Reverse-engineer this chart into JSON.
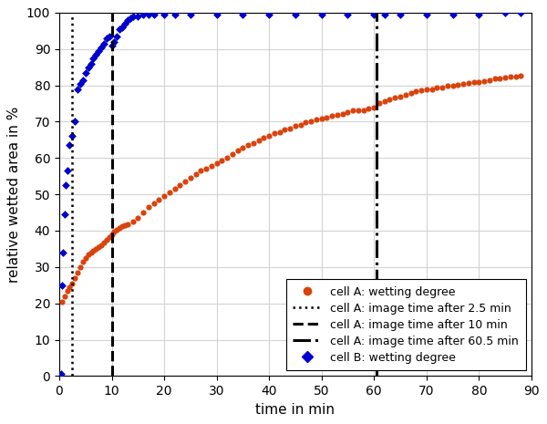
{
  "title": "",
  "xlabel": "time in min",
  "ylabel": "relative wetted area in %",
  "xlim": [
    0,
    90
  ],
  "ylim": [
    0,
    100
  ],
  "xticks": [
    0,
    10,
    20,
    30,
    40,
    50,
    60,
    70,
    80,
    90
  ],
  "yticks": [
    0,
    10,
    20,
    30,
    40,
    50,
    60,
    70,
    80,
    90,
    100
  ],
  "vline_dotted_x": 2.5,
  "vline_dashed_x": 10.0,
  "vline_dashdot_x": 60.5,
  "color_A": "#d9430d",
  "color_B": "#0000cd",
  "legend_labels": [
    "cell A: wetting degree",
    "cell A: image time after 2.5 min",
    "cell A: image time after 10 min",
    "cell A: image time after 60.5 min",
    "cell B: wetting degree"
  ],
  "cell_A_time": [
    0.5,
    1.0,
    1.5,
    2.0,
    2.5,
    3.0,
    3.5,
    4.0,
    4.5,
    5.0,
    5.5,
    6.0,
    6.5,
    7.0,
    7.5,
    8.0,
    8.5,
    9.0,
    9.5,
    10.0,
    10.5,
    11.0,
    11.5,
    12.0,
    12.5,
    13.0,
    14.0,
    15.0,
    16.0,
    17.0,
    18.0,
    19.0,
    20.0,
    21.0,
    22.0,
    23.0,
    24.0,
    25.0,
    26.0,
    27.0,
    28.0,
    29.0,
    30.0,
    31.0,
    32.0,
    33.0,
    34.0,
    35.0,
    36.0,
    37.0,
    38.0,
    39.0,
    40.0,
    41.0,
    42.0,
    43.0,
    44.0,
    45.0,
    46.0,
    47.0,
    48.0,
    49.0,
    50.0,
    51.0,
    52.0,
    53.0,
    54.0,
    55.0,
    56.0,
    57.0,
    58.0,
    59.0,
    60.0,
    61.0,
    62.0,
    63.0,
    64.0,
    65.0,
    66.0,
    67.0,
    68.0,
    69.0,
    70.0,
    71.0,
    72.0,
    73.0,
    74.0,
    75.0,
    76.0,
    77.0,
    78.0,
    79.0,
    80.0,
    81.0,
    82.0,
    83.0,
    84.0,
    85.0,
    86.0,
    87.0,
    88.0
  ],
  "cell_A_values": [
    20.5,
    22.0,
    23.5,
    24.5,
    25.5,
    27.0,
    28.5,
    30.0,
    31.5,
    32.5,
    33.5,
    34.0,
    34.5,
    35.0,
    35.5,
    36.0,
    36.8,
    37.5,
    38.2,
    39.0,
    39.8,
    40.2,
    40.8,
    41.2,
    41.5,
    41.8,
    42.5,
    43.5,
    45.0,
    46.5,
    47.5,
    48.5,
    49.5,
    50.5,
    51.5,
    52.5,
    53.5,
    54.5,
    55.5,
    56.5,
    57.0,
    57.8,
    58.5,
    59.2,
    60.0,
    61.0,
    62.0,
    62.8,
    63.5,
    64.0,
    64.8,
    65.5,
    66.0,
    66.8,
    67.2,
    67.8,
    68.2,
    68.8,
    69.2,
    69.8,
    70.2,
    70.5,
    70.8,
    71.2,
    71.5,
    71.8,
    72.0,
    72.5,
    73.0,
    73.0,
    73.2,
    73.5,
    73.8,
    75.0,
    75.5,
    76.0,
    76.5,
    77.0,
    77.5,
    78.0,
    78.3,
    78.6,
    78.8,
    79.0,
    79.3,
    79.5,
    79.8,
    80.0,
    80.2,
    80.4,
    80.6,
    80.8,
    81.0,
    81.2,
    81.5,
    81.8,
    82.0,
    82.2,
    82.3,
    82.5,
    82.7
  ],
  "cell_B_time": [
    0.1,
    0.3,
    0.5,
    0.7,
    1.0,
    1.3,
    1.6,
    2.0,
    2.5,
    3.0,
    3.5,
    4.0,
    4.5,
    5.0,
    5.5,
    6.0,
    6.5,
    7.0,
    7.5,
    8.0,
    8.5,
    9.0,
    9.5,
    10.0,
    10.5,
    11.0,
    11.5,
    12.0,
    12.5,
    13.0,
    13.5,
    14.0,
    15.0,
    16.0,
    17.0,
    18.0,
    20.0,
    22.0,
    25.0,
    30.0,
    35.0,
    40.0,
    45.0,
    50.0,
    55.0,
    60.0,
    62.0,
    65.0,
    70.0,
    75.0,
    80.0,
    85.0,
    88.0
  ],
  "cell_B_values": [
    0.0,
    0.5,
    25.0,
    34.0,
    44.5,
    52.5,
    56.5,
    63.5,
    66.0,
    70.0,
    79.0,
    80.5,
    81.5,
    83.5,
    85.0,
    86.0,
    87.5,
    88.5,
    89.5,
    90.5,
    91.5,
    93.0,
    93.5,
    91.0,
    92.0,
    93.5,
    95.5,
    96.0,
    97.0,
    98.0,
    98.5,
    99.0,
    99.0,
    99.5,
    99.5,
    99.5,
    99.5,
    99.5,
    99.5,
    99.5,
    99.5,
    99.5,
    99.5,
    99.5,
    99.5,
    99.5,
    99.5,
    99.5,
    99.5,
    99.5,
    99.5,
    100.0,
    100.0
  ],
  "bg_color": "#ffffff",
  "grid_color": "#d3d3d3"
}
